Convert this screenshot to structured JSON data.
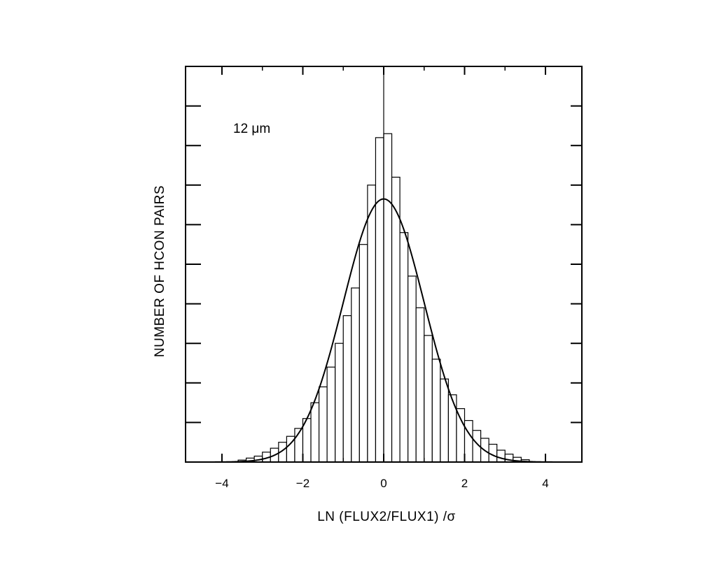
{
  "chart_data": {
    "type": "bar",
    "title": "",
    "xlabel": "LN (FLUX2/FLUX1) /σ",
    "ylabel": "NUMBER OF HCON PAIRS",
    "annotation": "12 μm",
    "xlim": [
      -4.9,
      4.9
    ],
    "ylim": [
      0,
      1
    ],
    "x_ticks": [
      -4,
      -2,
      0,
      2,
      4
    ],
    "x_tick_labels": [
      "−4",
      "−2",
      "0",
      "2",
      "4"
    ],
    "y_tick_labels": [],
    "grid": false,
    "legend": "none",
    "bin_width": 0.2,
    "histogram": {
      "name": "",
      "bin_start": [
        -3.6,
        -3.4,
        -3.2,
        -3.0,
        -2.8,
        -2.6,
        -2.4,
        -2.2,
        -2.0,
        -1.8,
        -1.6,
        -1.4,
        -1.2,
        -1.0,
        -0.8,
        -0.6,
        -0.4,
        -0.2,
        0.0,
        0.2,
        0.4,
        0.6,
        0.8,
        1.0,
        1.2,
        1.4,
        1.6,
        1.8,
        2.0,
        2.2,
        2.4,
        2.6,
        2.8,
        3.0,
        3.2,
        3.4
      ],
      "values": [
        0.005,
        0.01,
        0.015,
        0.025,
        0.035,
        0.05,
        0.065,
        0.085,
        0.11,
        0.15,
        0.19,
        0.24,
        0.3,
        0.37,
        0.44,
        0.55,
        0.7,
        0.82,
        0.83,
        0.72,
        0.58,
        0.47,
        0.39,
        0.32,
        0.26,
        0.21,
        0.17,
        0.135,
        0.105,
        0.08,
        0.06,
        0.045,
        0.03,
        0.02,
        0.012,
        0.006
      ]
    },
    "fit_curve": {
      "name": "",
      "kind": "gaussian",
      "peak": 0.665,
      "center": 0.0,
      "sigma": 1.0
    },
    "center_line_x": 0.0
  }
}
